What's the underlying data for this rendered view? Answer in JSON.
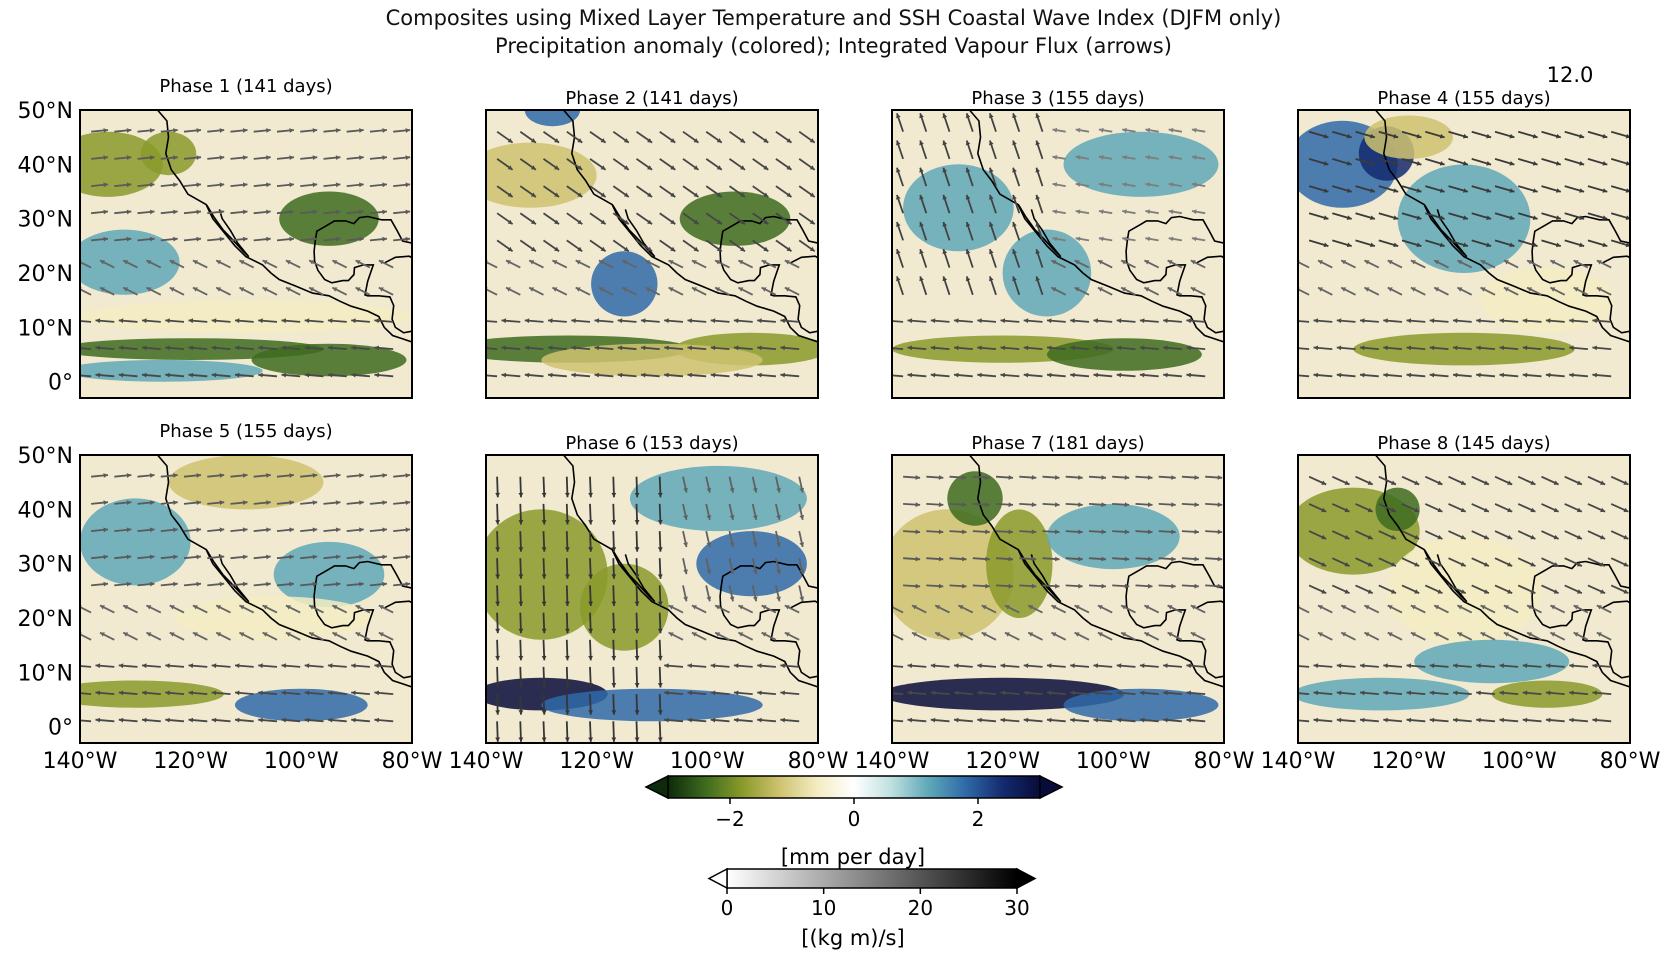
{
  "figure": {
    "title_line1": "Composites using Mixed Layer Temperature and SSH Coastal Wave Index (DJFM only)",
    "title_line2": "Precipitation anomaly (colored); Integrated Vapour Flux (arrows)",
    "corner_label": "12.0"
  },
  "axes": {
    "lat_ticks": [
      "50°N",
      "40°N",
      "30°N",
      "20°N",
      "10°N",
      "0°"
    ],
    "lon_ticks": [
      "140°W",
      "120°W",
      "100°W",
      "80°W"
    ]
  },
  "panels": [
    {
      "label": "Phase 1 (141 days)"
    },
    {
      "label": "Phase 2 (141 days)"
    },
    {
      "label": "Phase 3 (155 days)"
    },
    {
      "label": "Phase 4 (155 days)"
    },
    {
      "label": "Phase 5 (155 days)"
    },
    {
      "label": "Phase 6 (153 days)"
    },
    {
      "label": "Phase 7 (181 days)"
    },
    {
      "label": "Phase 8 (145 days)"
    }
  ],
  "colorbar_precip": {
    "ticks": [
      "−2",
      "0",
      "2"
    ],
    "label": "[mm per day]",
    "colors": [
      "#0d2a0a",
      "#3d6b1e",
      "#8a9a2a",
      "#cfc270",
      "#f3ecc2",
      "#ffffff",
      "#bfe0e0",
      "#5fa8b8",
      "#2f6aa8",
      "#142a6e",
      "#080c3a"
    ]
  },
  "colorbar_flux": {
    "ticks": [
      "0",
      "10",
      "20",
      "30"
    ],
    "label": "[(kg m)/s]"
  },
  "chart_data": {
    "type": "heatmap",
    "title": "Composites using Mixed Layer Temperature and SSH Coastal Wave Index (DJFM only)",
    "subtitle": "Precipitation anomaly (colored); Integrated Vapour Flux (arrows)",
    "xlim": [
      -140,
      -80
    ],
    "ylim": [
      -3,
      50
    ],
    "x_ticks": [
      -140,
      -120,
      -100,
      -80
    ],
    "y_ticks": [
      0,
      10,
      20,
      30,
      40,
      50
    ],
    "color_scale": {
      "variable": "precipitation anomaly",
      "unit": "mm per day",
      "range": [
        -3,
        3
      ]
    },
    "arrow_scale": {
      "variable": "integrated vapour flux",
      "unit": "(kg m)/s",
      "range": [
        0,
        30
      ]
    },
    "panels": [
      {
        "label": "Phase 1 (141 days)",
        "days": 141
      },
      {
        "label": "Phase 2 (141 days)",
        "days": 141
      },
      {
        "label": "Phase 3 (155 days)",
        "days": 155
      },
      {
        "label": "Phase 4 (155 days)",
        "days": 155
      },
      {
        "label": "Phase 5 (155 days)",
        "days": 155
      },
      {
        "label": "Phase 6 (153 days)",
        "days": 153
      },
      {
        "label": "Phase 7 (181 days)",
        "days": 181
      },
      {
        "label": "Phase 8 (145 days)",
        "days": 145
      }
    ]
  }
}
